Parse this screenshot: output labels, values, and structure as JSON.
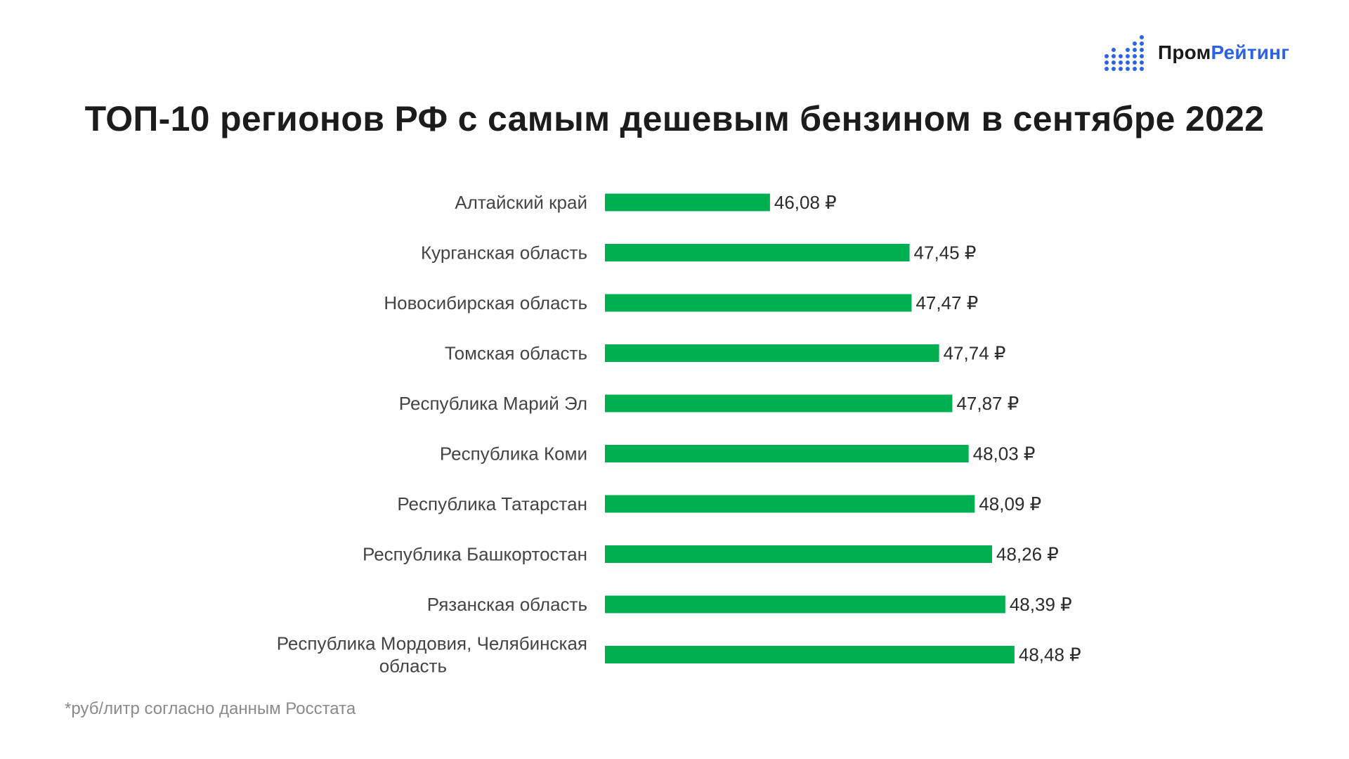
{
  "brand": {
    "name_part1": "Пром",
    "name_part2": "Рейтинг",
    "accent_color": "#2a63e8"
  },
  "chart_data": {
    "type": "bar",
    "orientation": "horizontal",
    "title": "ТОП-10 регионов РФ с самым дешевым бензином в сентябре 2022",
    "categories": [
      "Алтайский край",
      "Курганская область",
      "Новосибирская область",
      "Томская область",
      "Республика Марий Эл",
      "Республика Коми",
      "Республика Татарстан",
      "Республика Башкортостан",
      "Рязанская область",
      "Республика Мордовия, Челябинская область"
    ],
    "values": [
      46.08,
      47.45,
      47.47,
      47.74,
      47.87,
      48.03,
      48.09,
      48.26,
      48.39,
      48.48
    ],
    "value_labels": [
      "46,08 ₽",
      "47,45 ₽",
      "47,47 ₽",
      "47,74 ₽",
      "47,87 ₽",
      "48,03 ₽",
      "48,09 ₽",
      "48,26 ₽",
      "48,39 ₽",
      "48,48 ₽"
    ],
    "bar_color": "#00b050",
    "grid": false,
    "legend": false
  },
  "footnote": "*руб/литр согласно данным Росстата"
}
